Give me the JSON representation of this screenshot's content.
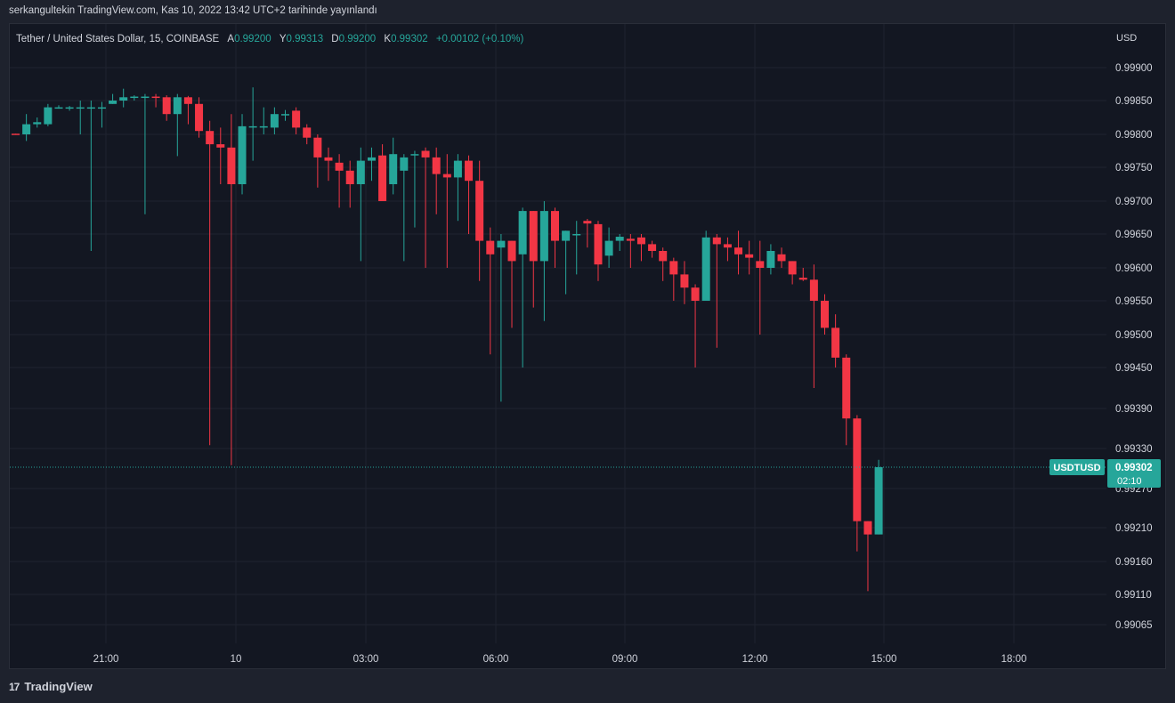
{
  "caption": "serkangultekin TradingView.com, Kas 10, 2022 13:42 UTC+2 tarihinde yayınlandı",
  "legend": {
    "symbol": "Tether / United States Dollar, 15, COINBASE",
    "open_label": "A",
    "open": "0.99200",
    "high_label": "Y",
    "high": "0.99313",
    "low_label": "D",
    "low": "0.99200",
    "close_label": "K",
    "close": "0.99302",
    "change": "+0.00102 (+0.10%)"
  },
  "currency": "USD",
  "price_tag": {
    "symbol": "USDTUSD",
    "price": "0.99302",
    "countdown": "02:10"
  },
  "footer": {
    "logo_mark": "17",
    "logo_text": "TradingView"
  },
  "colors": {
    "up": "#26a69a",
    "down": "#f23645",
    "bg": "#131722",
    "grid": "#1f2330"
  },
  "chart_data": {
    "type": "candlestick",
    "y_ticks": [
      "0.99900",
      "0.99850",
      "0.99800",
      "0.99750",
      "0.99700",
      "0.99650",
      "0.99600",
      "0.99550",
      "0.99500",
      "0.99450",
      "0.99390",
      "0.99330",
      "0.99270",
      "0.99210",
      "0.99160",
      "0.99110",
      "0.99065"
    ],
    "x_ticks": [
      "21:00",
      "10",
      "03:00",
      "06:00",
      "09:00",
      "12:00",
      "15:00",
      "18:00"
    ],
    "last_price": 0.99302,
    "candles": [
      [
        0.99801,
        0.99801,
        0.998,
        0.998
      ],
      [
        0.998,
        0.9983,
        0.9979,
        0.99815
      ],
      [
        0.99815,
        0.99825,
        0.9981,
        0.99818
      ],
      [
        0.99815,
        0.99845,
        0.99812,
        0.9984
      ],
      [
        0.9984,
        0.99843,
        0.99838,
        0.9984
      ],
      [
        0.9984,
        0.99842,
        0.99835,
        0.9984
      ],
      [
        0.9984,
        0.9985,
        0.998,
        0.9984
      ],
      [
        0.9984,
        0.9985,
        0.99625,
        0.9984
      ],
      [
        0.9984,
        0.99848,
        0.9981,
        0.9984
      ],
      [
        0.99845,
        0.9986,
        0.99845,
        0.9985
      ],
      [
        0.9985,
        0.99868,
        0.9984,
        0.99855
      ],
      [
        0.99855,
        0.99858,
        0.9985,
        0.99856
      ],
      [
        0.99856,
        0.9986,
        0.9968,
        0.99856
      ],
      [
        0.99856,
        0.9986,
        0.9984,
        0.99855
      ],
      [
        0.99855,
        0.99858,
        0.9982,
        0.9983
      ],
      [
        0.9983,
        0.9986,
        0.99767,
        0.99855
      ],
      [
        0.99855,
        0.99857,
        0.99815,
        0.99845
      ],
      [
        0.99845,
        0.99855,
        0.99795,
        0.99805
      ],
      [
        0.99805,
        0.9982,
        0.99335,
        0.99785
      ],
      [
        0.99785,
        0.9981,
        0.99725,
        0.9978
      ],
      [
        0.9978,
        0.9983,
        0.99305,
        0.99725
      ],
      [
        0.99725,
        0.9983,
        0.9971,
        0.99812
      ],
      [
        0.99812,
        0.9987,
        0.9976,
        0.99812
      ],
      [
        0.9981,
        0.9984,
        0.998,
        0.99812
      ],
      [
        0.9981,
        0.9984,
        0.998,
        0.9983
      ],
      [
        0.9983,
        0.99836,
        0.9982,
        0.9983
      ],
      [
        0.99835,
        0.9984,
        0.998,
        0.9981
      ],
      [
        0.9981,
        0.99815,
        0.99785,
        0.99795
      ],
      [
        0.99795,
        0.998,
        0.9972,
        0.99765
      ],
      [
        0.99765,
        0.9978,
        0.9973,
        0.9976
      ],
      [
        0.99757,
        0.9977,
        0.9969,
        0.99745
      ],
      [
        0.99745,
        0.9976,
        0.9969,
        0.99725
      ],
      [
        0.99725,
        0.9978,
        0.9961,
        0.9976
      ],
      [
        0.9976,
        0.9978,
        0.9973,
        0.99765
      ],
      [
        0.99768,
        0.99785,
        0.997,
        0.997
      ],
      [
        0.99725,
        0.99795,
        0.9971,
        0.9977
      ],
      [
        0.99745,
        0.9977,
        0.9961,
        0.99765
      ],
      [
        0.9977,
        0.99775,
        0.9966,
        0.9977
      ],
      [
        0.99775,
        0.9978,
        0.996,
        0.99765
      ],
      [
        0.99765,
        0.9978,
        0.9968,
        0.9974
      ],
      [
        0.9974,
        0.9977,
        0.996,
        0.99735
      ],
      [
        0.99735,
        0.9977,
        0.9967,
        0.9976
      ],
      [
        0.9976,
        0.99768,
        0.9965,
        0.9973
      ],
      [
        0.9973,
        0.9976,
        0.9958,
        0.9964
      ],
      [
        0.9964,
        0.9966,
        0.9947,
        0.9962
      ],
      [
        0.9963,
        0.9965,
        0.994,
        0.9964
      ],
      [
        0.9964,
        0.9964,
        0.9951,
        0.9961
      ],
      [
        0.9962,
        0.9969,
        0.9945,
        0.99685
      ],
      [
        0.99685,
        0.99685,
        0.9954,
        0.9961
      ],
      [
        0.9961,
        0.997,
        0.9952,
        0.99685
      ],
      [
        0.99685,
        0.9969,
        0.996,
        0.9964
      ],
      [
        0.9964,
        0.99655,
        0.9956,
        0.99655
      ],
      [
        0.9965,
        0.9967,
        0.9959,
        0.9965
      ],
      [
        0.9967,
        0.99673,
        0.9963,
        0.99666
      ],
      [
        0.99665,
        0.9967,
        0.9958,
        0.99605
      ],
      [
        0.99618,
        0.9966,
        0.996,
        0.9964
      ],
      [
        0.9964,
        0.9965,
        0.99625,
        0.99646
      ],
      [
        0.99643,
        0.9965,
        0.996,
        0.9964
      ],
      [
        0.99645,
        0.9965,
        0.9961,
        0.99635
      ],
      [
        0.99635,
        0.9964,
        0.99615,
        0.99625
      ],
      [
        0.99625,
        0.9963,
        0.9958,
        0.9961
      ],
      [
        0.9961,
        0.99615,
        0.9955,
        0.9959
      ],
      [
        0.9959,
        0.9961,
        0.99545,
        0.9957
      ],
      [
        0.9957,
        0.99575,
        0.9945,
        0.9955
      ],
      [
        0.9955,
        0.99655,
        0.9955,
        0.99645
      ],
      [
        0.99645,
        0.9965,
        0.9948,
        0.99635
      ],
      [
        0.99635,
        0.99645,
        0.9961,
        0.9963
      ],
      [
        0.9963,
        0.99655,
        0.9959,
        0.9962
      ],
      [
        0.9962,
        0.9964,
        0.9959,
        0.99615
      ],
      [
        0.9961,
        0.9964,
        0.995,
        0.996
      ],
      [
        0.996,
        0.99635,
        0.9959,
        0.99625
      ],
      [
        0.9962,
        0.9963,
        0.996,
        0.9961
      ],
      [
        0.9961,
        0.9961,
        0.99575,
        0.9959
      ],
      [
        0.99585,
        0.996,
        0.9958,
        0.99582
      ],
      [
        0.99582,
        0.99605,
        0.9942,
        0.9955
      ],
      [
        0.9955,
        0.9956,
        0.995,
        0.9951
      ],
      [
        0.9951,
        0.9953,
        0.9945,
        0.99465
      ],
      [
        0.99465,
        0.9947,
        0.99335,
        0.99375
      ],
      [
        0.99375,
        0.9938,
        0.99175,
        0.9922
      ],
      [
        0.9922,
        0.9922,
        0.99115,
        0.992
      ],
      [
        0.992,
        0.99313,
        0.992,
        0.99302
      ]
    ]
  }
}
